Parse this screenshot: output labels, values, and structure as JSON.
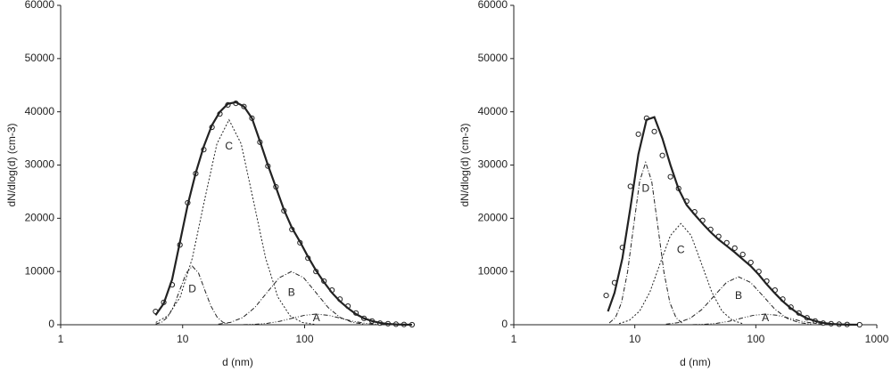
{
  "chart_data": [
    {
      "type": "line",
      "xlabel": "d (nm)",
      "ylabel": "dN/dlog(d) (cm-3)",
      "xscale": "log",
      "xlim": [
        1,
        800
      ],
      "xticks": [
        1,
        10,
        100
      ],
      "ylim": [
        0,
        60000
      ],
      "yticks": [
        0,
        10000,
        20000,
        30000,
        40000,
        50000,
        60000
      ],
      "series": [
        {
          "style": "markers",
          "color": "#222222",
          "x": [
            6.0,
            7.0,
            8.2,
            9.5,
            11.0,
            12.8,
            14.9,
            17.4,
            20.2,
            23.5,
            27.3,
            31.8,
            37.0,
            43.0,
            50.0,
            58.2,
            67.7,
            78.7,
            91.6,
            106.5,
            123.9,
            144.1,
            167.6,
            194.9,
            226.7,
            263.7,
            306.7,
            356.7,
            414.9,
            482.5,
            561.2,
            652.7,
            759.2
          ],
          "values": [
            2500,
            4200,
            7500,
            15000,
            22900,
            28400,
            32900,
            37100,
            39600,
            41300,
            41600,
            41000,
            38800,
            34300,
            29800,
            25900,
            21400,
            17900,
            15400,
            12500,
            10000,
            8200,
            6500,
            4800,
            3500,
            2200,
            1200,
            700,
            300,
            200,
            100,
            50,
            0
          ]
        },
        {
          "style": "solid",
          "color": "#222222",
          "x": [
            6.0,
            7.0,
            8.2,
            9.5,
            11.0,
            12.8,
            14.9,
            17.4,
            20.2,
            23.5,
            27.3,
            31.8,
            37.0,
            43.0,
            50.0,
            58.2,
            67.7,
            78.7,
            91.6,
            106.5,
            123.9,
            144.1,
            167.6,
            194.9,
            226.7,
            263.7,
            306.7,
            356.7,
            414.9,
            482.5,
            561.2,
            652.7,
            759.2
          ],
          "values": [
            1800,
            4000,
            8500,
            15500,
            22500,
            28500,
            33500,
            37500,
            40000,
            41500,
            41800,
            41000,
            38800,
            34500,
            30000,
            25800,
            21600,
            18200,
            15600,
            12800,
            10200,
            8000,
            6000,
            4400,
            3100,
            2000,
            1200,
            700,
            350,
            150,
            60,
            20,
            5
          ]
        },
        {
          "name": "C",
          "style": "dotted",
          "color": "#222222",
          "x": [
            6.03,
            7.59,
            9.55,
            12.0,
            15.1,
            19.1,
            24,
            30.2,
            38.0,
            47.9,
            60.3,
            75.9,
            95.5,
            120
          ],
          "values": [
            430,
            1690,
            5210,
            12500,
            23350,
            33980,
            38500,
            33980,
            23350,
            12500,
            5210,
            1690,
            430,
            85
          ]
        },
        {
          "name": "D",
          "style": "dashdot",
          "color": "#222222",
          "x": [
            6.01,
            6.75,
            7.57,
            8.49,
            9.53,
            10.7,
            12,
            13.5,
            15.1,
            17.0,
            19.1,
            21.3,
            23.9
          ],
          "values": [
            122,
            483,
            1488,
            3572,
            6672,
            9708,
            11000,
            9708,
            6672,
            3572,
            1488,
            483,
            122
          ]
        },
        {
          "name": "B",
          "style": "dashdot",
          "color": "#222222",
          "x": [
            19.6,
            24.7,
            31.1,
            39.1,
            49.2,
            62.0,
            78,
            98.2,
            123.6,
            155.6,
            195.9,
            246.6,
            310.4
          ],
          "values": [
            111,
            439,
            1353,
            3247,
            6065,
            8825,
            10000,
            8825,
            6065,
            3247,
            1353,
            439,
            111
          ]
        },
        {
          "name": "A",
          "style": "dashdotdot",
          "color": "#222222",
          "x": [
            31.4,
            39.5,
            49.8,
            62.6,
            78.9,
            99.3,
            125,
            157.4,
            198.1,
            249.4,
            314.0,
            395.3,
            497.6
          ],
          "values": [
            22,
            88,
            271,
            649,
            1213,
            1765,
            2000,
            1765,
            1213,
            649,
            271,
            88,
            22
          ]
        }
      ]
    },
    {
      "type": "line",
      "xlabel": "d (nm)",
      "ylabel": "dN/dlog(d) (cm-3)",
      "xscale": "log",
      "xlim": [
        1,
        1000
      ],
      "xticks": [
        1,
        10,
        100,
        1000
      ],
      "ylim": [
        0,
        60000
      ],
      "yticks": [
        0,
        10000,
        20000,
        30000,
        40000,
        50000,
        60000
      ],
      "series": [
        {
          "style": "markers",
          "color": "#222222",
          "x": [
            5.8,
            6.8,
            7.9,
            9.2,
            10.7,
            12.5,
            14.5,
            16.9,
            19.7,
            23.0,
            26.8,
            31.2,
            36.3,
            42.3,
            49.3,
            57.5,
            67.0,
            78.0,
            90.9,
            105.9,
            123,
            144,
            167,
            195,
            227,
            265,
            309,
            360,
            419,
            488,
            568,
            720
          ],
          "values": [
            5500,
            7900,
            14500,
            26000,
            35800,
            38800,
            36300,
            31800,
            27800,
            25600,
            23200,
            21200,
            19600,
            17900,
            16600,
            15400,
            14400,
            13200,
            11700,
            10000,
            8200,
            6500,
            4800,
            3300,
            2200,
            1300,
            700,
            300,
            200,
            100,
            50,
            0
          ]
        },
        {
          "style": "solid",
          "color": "#222222",
          "x": [
            6,
            6.8,
            7.9,
            9.2,
            10.7,
            12.5,
            14.5,
            16.9,
            19.7,
            23.0,
            26.8,
            31.2,
            36.3,
            42.3,
            49.3,
            57.5,
            67,
            78,
            90.9,
            105.9,
            123,
            144,
            167,
            195,
            227,
            265,
            309,
            360,
            419,
            488,
            568,
            700
          ],
          "values": [
            2500,
            6000,
            12500,
            22000,
            32000,
            38500,
            39000,
            35000,
            30000,
            25500,
            22500,
            20700,
            19000,
            17400,
            16000,
            14800,
            13600,
            12300,
            11000,
            9400,
            7600,
            5900,
            4400,
            3100,
            2000,
            1200,
            700,
            350,
            150,
            60,
            20,
            5
          ]
        },
        {
          "name": "D",
          "style": "dashdot",
          "color": "#222222",
          "x": [
            6.16,
            6.92,
            7.76,
            8.71,
            9.77,
            10.96,
            12.3,
            13.8,
            15.5,
            17.4,
            19.5,
            21.9,
            24.5
          ],
          "values": [
            339,
            1339,
            4125,
            9903,
            18498,
            26916,
            30500,
            26916,
            18498,
            9903,
            4125,
            1339,
            339
          ]
        },
        {
          "name": "C",
          "style": "dotted",
          "color": "#222222",
          "x": [
            7.42,
            9.02,
            10.97,
            13.34,
            16.2,
            19.7,
            24,
            29.2,
            35.5,
            43.2,
            52.5,
            63.9,
            77.7
          ],
          "values": [
            211,
            834,
            2570,
            6169,
            11524,
            16768,
            19000,
            16768,
            11524,
            6169,
            2570,
            834,
            211
          ]
        },
        {
          "name": "B",
          "style": "dashdot",
          "color": "#222222",
          "x": [
            18.1,
            22.8,
            28.7,
            36.1,
            45.4,
            57.2,
            72,
            90.6,
            114.1,
            143.7,
            180.9,
            227.7,
            286.6
          ],
          "values": [
            100,
            395,
            1218,
            2922,
            5459,
            7943,
            9000,
            7943,
            5459,
            2922,
            1218,
            395,
            100
          ]
        },
        {
          "name": "A",
          "style": "dashdotdot",
          "color": "#222222",
          "x": [
            30.1,
            37.9,
            47.7,
            60.1,
            75.7,
            95.3,
            120,
            151.1,
            190.2,
            239.5,
            301.5,
            379.5,
            477.8
          ],
          "values": [
            22,
            88,
            271,
            649,
            1213,
            1765,
            2000,
            1765,
            1213,
            649,
            271,
            88,
            22
          ]
        }
      ]
    }
  ]
}
